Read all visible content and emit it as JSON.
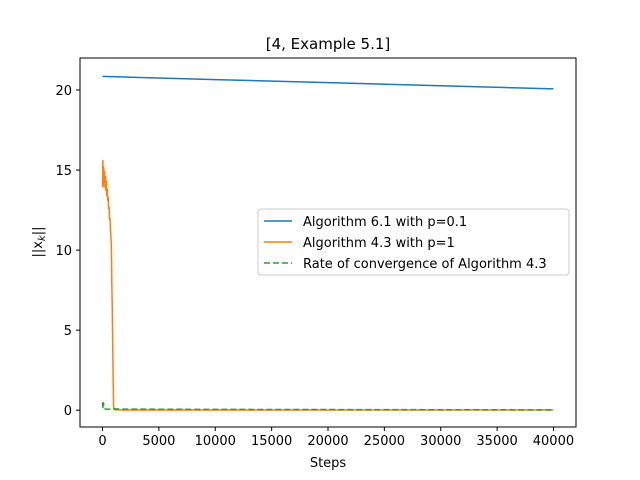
{
  "chart_data": {
    "type": "line",
    "title": "[4, Example 5.1]",
    "xlabel": "Steps",
    "ylabel": "||x_k||",
    "xlim": [
      -2000,
      42000
    ],
    "ylim": [
      -1.05,
      22.0
    ],
    "xticks": [
      0,
      5000,
      10000,
      15000,
      20000,
      25000,
      30000,
      35000,
      40000
    ],
    "yticks": [
      0,
      5,
      10,
      15,
      20
    ],
    "grid": false,
    "legend_position": "center-right",
    "series": [
      {
        "name": "Algorithm 6.1 with p=0.1",
        "color": "#1f77b4",
        "style": "solid",
        "x": [
          0,
          10000,
          20000,
          30000,
          40000
        ],
        "y": [
          20.85,
          20.65,
          20.46,
          20.27,
          20.07
        ]
      },
      {
        "name": "Algorithm 4.3 with p=1",
        "color": "#ff7f0e",
        "style": "solid",
        "x": [
          0,
          30,
          60,
          100,
          140,
          180,
          220,
          260,
          300,
          340,
          380,
          420,
          460,
          500,
          540,
          580,
          620,
          660,
          700,
          740,
          780,
          820,
          860,
          900,
          940,
          980,
          1000,
          1050,
          1100,
          2000,
          5000,
          10000,
          20000,
          30000,
          40000
        ],
        "y": [
          13.9,
          15.6,
          14.0,
          15.2,
          14.3,
          14.9,
          13.9,
          14.6,
          13.7,
          14.3,
          13.4,
          13.8,
          13.1,
          13.3,
          12.6,
          12.7,
          11.9,
          12.0,
          11.3,
          10.8,
          10.4,
          8.0,
          6.5,
          4.2,
          2.0,
          0.3,
          0.05,
          0.1,
          0.02,
          0.01,
          0.01,
          0.01,
          0.01,
          0.01,
          0.01
        ]
      },
      {
        "name": "Rate of convergence of Algorithm 4.3",
        "color": "#2ca02c",
        "style": "dashed",
        "x": [
          0,
          40,
          80,
          120,
          200,
          400,
          1000,
          2000,
          5000,
          10000,
          20000,
          30000,
          40000
        ],
        "y": [
          0.5,
          0.1,
          0.45,
          0.12,
          0.08,
          0.06,
          0.08,
          0.07,
          0.06,
          0.05,
          0.04,
          0.03,
          0.02
        ]
      }
    ]
  }
}
